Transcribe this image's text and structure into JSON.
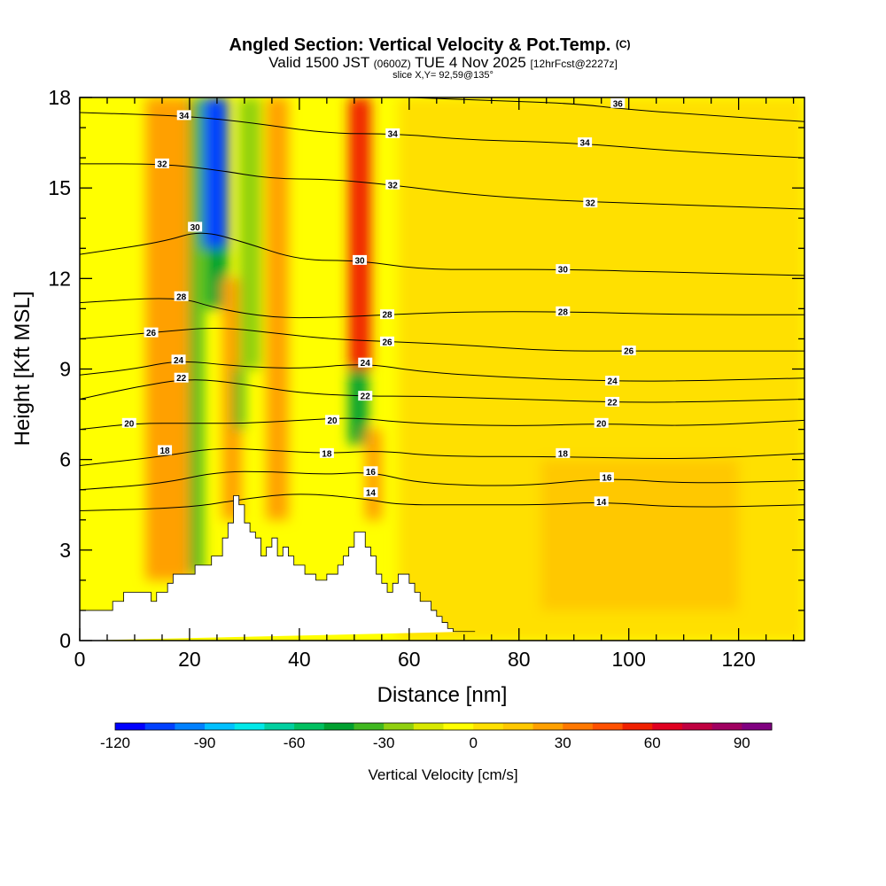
{
  "chart_data": {
    "type": "heatmap",
    "title_main": "Angled Section: Vertical Velocity & Pot.Temp.",
    "title_main_suffix": "(C)",
    "subtitle_valid_prefix": "Valid 1500 JST",
    "subtitle_utc": "(0600Z)",
    "subtitle_date": "TUE 4 Nov 2025",
    "subtitle_fcst": "[12hrFcst@2227z]",
    "slice_label": "slice X,Y= 92,59@135°",
    "xlabel": "Distance [nm]",
    "ylabel": "Height [Kft MSL]",
    "xlim": [
      0,
      132
    ],
    "ylim": [
      0,
      18
    ],
    "x_ticks": [
      "0",
      "20",
      "40",
      "60",
      "80",
      "100",
      "120"
    ],
    "y_ticks": [
      "0",
      "3",
      "6",
      "9",
      "12",
      "15",
      "18"
    ],
    "colorbar": {
      "label": "Vertical Velocity [cm/s]",
      "range": [
        -120,
        100
      ],
      "ticks": [
        "-120",
        "-90",
        "-60",
        "-30",
        "0",
        "30",
        "60",
        "90"
      ],
      "colors": [
        "#0000ff",
        "#0040ff",
        "#0080ff",
        "#00c0ff",
        "#00e8e8",
        "#00d0a0",
        "#00c060",
        "#00a030",
        "#40b820",
        "#90d010",
        "#d8e800",
        "#ffff00",
        "#ffe000",
        "#ffc800",
        "#ffa000",
        "#ff7800",
        "#ff5000",
        "#f02000",
        "#e00020",
        "#c00040",
        "#a00060",
        "#800080"
      ]
    },
    "terrain_profile": {
      "x": [
        0,
        5,
        5,
        6,
        6,
        7,
        7,
        8,
        8,
        10,
        10,
        13,
        13,
        14,
        14,
        15,
        15,
        16,
        16,
        17,
        17,
        18,
        18,
        19,
        19,
        20,
        20,
        21,
        21,
        22,
        22,
        23,
        23,
        24,
        24,
        25,
        25,
        26,
        26,
        27,
        27,
        28,
        28,
        29,
        29,
        30,
        30,
        31,
        31,
        32,
        32,
        33,
        33,
        34,
        34,
        35,
        35,
        36,
        36,
        37,
        37,
        38,
        38,
        39,
        39,
        40,
        40,
        41,
        41,
        42,
        42,
        43,
        43,
        44,
        44,
        45,
        45,
        46,
        46,
        47,
        47,
        48,
        48,
        49,
        49,
        50,
        50,
        51,
        51,
        52,
        52,
        53,
        53,
        54,
        54,
        55,
        55,
        56,
        56,
        57,
        57,
        58,
        58,
        59,
        59,
        60,
        60,
        61,
        61,
        62,
        62,
        63,
        63,
        64,
        64,
        65,
        65,
        66,
        66,
        67,
        67,
        68,
        68,
        69,
        69,
        70,
        70,
        71,
        71,
        72,
        72,
        132
      ],
      "y": [
        1.0,
        1.0,
        1.0,
        1.0,
        1.3,
        1.3,
        1.3,
        1.3,
        1.6,
        1.6,
        1.6,
        1.6,
        1.3,
        1.3,
        1.6,
        1.6,
        1.6,
        1.6,
        1.9,
        1.9,
        2.2,
        2.2,
        2.2,
        2.2,
        2.2,
        2.2,
        2.2,
        2.2,
        2.5,
        2.5,
        2.5,
        2.5,
        2.5,
        2.5,
        2.8,
        2.8,
        2.8,
        2.8,
        3.4,
        3.4,
        3.9,
        3.9,
        4.8,
        4.8,
        4.5,
        4.5,
        3.9,
        3.9,
        3.6,
        3.6,
        3.4,
        3.4,
        2.8,
        2.8,
        3.1,
        3.1,
        3.4,
        3.4,
        2.8,
        2.8,
        3.1,
        3.1,
        2.8,
        2.8,
        2.5,
        2.5,
        2.5,
        2.5,
        2.2,
        2.2,
        2.2,
        2.2,
        2.0,
        2.0,
        2.0,
        2.0,
        2.2,
        2.2,
        2.2,
        2.2,
        2.5,
        2.5,
        2.8,
        2.8,
        3.1,
        3.1,
        3.6,
        3.6,
        3.6,
        3.6,
        3.1,
        3.1,
        2.8,
        2.8,
        2.2,
        2.2,
        1.9,
        1.9,
        1.6,
        1.6,
        1.9,
        1.9,
        2.2,
        2.2,
        2.2,
        2.2,
        1.9,
        1.9,
        1.6,
        1.6,
        1.3,
        1.3,
        1.3,
        1.3,
        1.0,
        1.0,
        0.8,
        0.8,
        0.6,
        0.6,
        0.4,
        0.4,
        0.3,
        0.3,
        0.3,
        0.3,
        0.3,
        0.3,
        0.3,
        0.3,
        0.3
      ]
    },
    "cells": [
      {
        "x0": 12,
        "x1": 20,
        "y0": 2,
        "y1": 18,
        "w": 20
      },
      {
        "x0": 20,
        "x1": 22.5,
        "y0": 2.2,
        "y1": 18,
        "w": -40
      },
      {
        "x0": 22.5,
        "x1": 27,
        "y0": 13,
        "y1": 18,
        "w": -110
      },
      {
        "x0": 23,
        "x1": 27,
        "y0": 11,
        "y1": 13,
        "w": -50
      },
      {
        "x0": 26,
        "x1": 29.5,
        "y0": 4,
        "y1": 12,
        "w": 30
      },
      {
        "x0": 28,
        "x1": 30,
        "y0": 7,
        "y1": 9,
        "w": -40
      },
      {
        "x0": 29,
        "x1": 33,
        "y0": 9,
        "y1": 18,
        "w": -25
      },
      {
        "x0": 34,
        "x1": 38,
        "y0": 4,
        "y1": 18,
        "w": 30
      },
      {
        "x0": 49,
        "x1": 53,
        "y0": 9,
        "y1": 18,
        "w": 50
      },
      {
        "x0": 49,
        "x1": 52.5,
        "y0": 6.5,
        "y1": 9,
        "w": -45
      },
      {
        "x0": 52,
        "x1": 55,
        "y0": 4,
        "y1": 7,
        "w": 30
      },
      {
        "x0": 67,
        "x1": 74,
        "y0": 13,
        "y1": 18,
        "w": -25
      },
      {
        "x0": 58,
        "x1": 132,
        "y0": 0,
        "y1": 18,
        "w": 4
      },
      {
        "x0": 84,
        "x1": 120,
        "y0": 1,
        "y1": 6,
        "w": 10
      }
    ],
    "isentropes": [
      {
        "value": 14,
        "label": "14",
        "pts": [
          [
            0,
            4.3
          ],
          [
            20,
            4.4
          ],
          [
            30,
            4.7
          ],
          [
            40,
            4.9
          ],
          [
            52,
            4.7
          ],
          [
            58,
            4.5
          ],
          [
            70,
            4.5
          ],
          [
            85,
            4.5
          ],
          [
            95,
            4.6
          ],
          [
            110,
            4.4
          ],
          [
            132,
            4.5
          ]
        ]
      },
      {
        "value": 16,
        "label": "16",
        "pts": [
          [
            0,
            5.0
          ],
          [
            15,
            5.2
          ],
          [
            25,
            5.6
          ],
          [
            35,
            5.6
          ],
          [
            45,
            5.5
          ],
          [
            53,
            5.6
          ],
          [
            62,
            5.2
          ],
          [
            80,
            5.1
          ],
          [
            96,
            5.4
          ],
          [
            110,
            5.2
          ],
          [
            132,
            5.3
          ]
        ]
      },
      {
        "value": 18,
        "label": "18",
        "pts": [
          [
            0,
            5.8
          ],
          [
            15,
            6.1
          ],
          [
            25,
            6.4
          ],
          [
            35,
            6.3
          ],
          [
            45,
            6.2
          ],
          [
            55,
            6.3
          ],
          [
            65,
            6.1
          ],
          [
            88,
            6.1
          ],
          [
            110,
            6.0
          ],
          [
            132,
            6.2
          ]
        ]
      },
      {
        "value": 20,
        "label": "20",
        "pts": [
          [
            0,
            7.0
          ],
          [
            10,
            7.2
          ],
          [
            20,
            7.2
          ],
          [
            30,
            7.2
          ],
          [
            40,
            7.3
          ],
          [
            50,
            7.4
          ],
          [
            60,
            7.2
          ],
          [
            80,
            7.1
          ],
          [
            95,
            7.2
          ],
          [
            110,
            7.1
          ],
          [
            132,
            7.3
          ]
        ]
      },
      {
        "value": 22,
        "label": "22",
        "pts": [
          [
            0,
            8.0
          ],
          [
            10,
            8.4
          ],
          [
            20,
            8.7
          ],
          [
            30,
            8.5
          ],
          [
            40,
            8.2
          ],
          [
            52,
            8.1
          ],
          [
            62,
            8.1
          ],
          [
            80,
            8.0
          ],
          [
            97,
            7.9
          ],
          [
            110,
            7.9
          ],
          [
            132,
            8.0
          ]
        ]
      },
      {
        "value": 24,
        "label": "24",
        "pts": [
          [
            0,
            8.8
          ],
          [
            10,
            9.0
          ],
          [
            18,
            9.3
          ],
          [
            28,
            9.1
          ],
          [
            40,
            9.0
          ],
          [
            52,
            9.2
          ],
          [
            62,
            8.9
          ],
          [
            80,
            8.7
          ],
          [
            97,
            8.6
          ],
          [
            110,
            8.6
          ],
          [
            132,
            8.7
          ]
        ]
      },
      {
        "value": 26,
        "label": "26",
        "pts": [
          [
            0,
            10.0
          ],
          [
            13,
            10.2
          ],
          [
            25,
            10.4
          ],
          [
            35,
            10.2
          ],
          [
            45,
            10.0
          ],
          [
            57,
            9.9
          ],
          [
            70,
            9.8
          ],
          [
            85,
            9.6
          ],
          [
            100,
            9.6
          ],
          [
            132,
            9.6
          ]
        ]
      },
      {
        "value": 28,
        "label": "28",
        "pts": [
          [
            0,
            11.2
          ],
          [
            18,
            11.4
          ],
          [
            25,
            11.0
          ],
          [
            35,
            10.7
          ],
          [
            45,
            10.7
          ],
          [
            56,
            10.8
          ],
          [
            70,
            10.9
          ],
          [
            88,
            10.9
          ],
          [
            110,
            10.8
          ],
          [
            132,
            10.8
          ]
        ]
      },
      {
        "value": 30,
        "label": "30",
        "pts": [
          [
            0,
            12.8
          ],
          [
            15,
            13.2
          ],
          [
            22,
            13.6
          ],
          [
            30,
            13.2
          ],
          [
            40,
            12.6
          ],
          [
            51,
            12.6
          ],
          [
            62,
            12.3
          ],
          [
            75,
            12.3
          ],
          [
            88,
            12.3
          ],
          [
            110,
            12.2
          ],
          [
            132,
            12.1
          ]
        ]
      },
      {
        "value": 32,
        "label": "32",
        "pts": [
          [
            0,
            15.8
          ],
          [
            15,
            15.8
          ],
          [
            25,
            15.6
          ],
          [
            35,
            15.3
          ],
          [
            45,
            15.3
          ],
          [
            57,
            15.1
          ],
          [
            70,
            14.8
          ],
          [
            85,
            14.6
          ],
          [
            100,
            14.5
          ],
          [
            132,
            14.3
          ]
        ]
      },
      {
        "value": 34,
        "label": "34",
        "pts": [
          [
            0,
            17.5
          ],
          [
            18,
            17.4
          ],
          [
            30,
            17.2
          ],
          [
            45,
            16.8
          ],
          [
            58,
            16.8
          ],
          [
            70,
            16.6
          ],
          [
            90,
            16.5
          ],
          [
            110,
            16.2
          ],
          [
            132,
            16.0
          ]
        ]
      },
      {
        "value": 36,
        "label": "36",
        "pts": [
          [
            60,
            18.0
          ],
          [
            75,
            17.9
          ],
          [
            90,
            17.8
          ],
          [
            100,
            17.6
          ],
          [
            115,
            17.4
          ],
          [
            132,
            17.2
          ]
        ]
      }
    ],
    "contour_labels": [
      {
        "x": 19,
        "y": 17.4,
        "text": "34"
      },
      {
        "x": 57,
        "y": 16.8,
        "text": "34"
      },
      {
        "x": 92,
        "y": 16.5,
        "text": "34"
      },
      {
        "x": 98,
        "y": 17.8,
        "text": "36"
      },
      {
        "x": 15,
        "y": 15.8,
        "text": "32"
      },
      {
        "x": 57,
        "y": 15.1,
        "text": "32"
      },
      {
        "x": 93,
        "y": 14.5,
        "text": "32"
      },
      {
        "x": 21,
        "y": 13.7,
        "text": "30"
      },
      {
        "x": 51,
        "y": 12.6,
        "text": "30"
      },
      {
        "x": 88,
        "y": 12.3,
        "text": "30"
      },
      {
        "x": 18.5,
        "y": 11.4,
        "text": "28"
      },
      {
        "x": 56,
        "y": 10.8,
        "text": "28"
      },
      {
        "x": 88,
        "y": 10.9,
        "text": "28"
      },
      {
        "x": 13,
        "y": 10.2,
        "text": "26"
      },
      {
        "x": 56,
        "y": 9.9,
        "text": "26"
      },
      {
        "x": 100,
        "y": 9.6,
        "text": "26"
      },
      {
        "x": 18,
        "y": 9.3,
        "text": "24"
      },
      {
        "x": 52,
        "y": 9.2,
        "text": "24"
      },
      {
        "x": 97,
        "y": 8.6,
        "text": "24"
      },
      {
        "x": 18.5,
        "y": 8.7,
        "text": "22"
      },
      {
        "x": 52,
        "y": 8.1,
        "text": "22"
      },
      {
        "x": 97,
        "y": 7.9,
        "text": "22"
      },
      {
        "x": 9,
        "y": 7.2,
        "text": "20"
      },
      {
        "x": 46,
        "y": 7.3,
        "text": "20"
      },
      {
        "x": 95,
        "y": 7.2,
        "text": "20"
      },
      {
        "x": 15.5,
        "y": 6.3,
        "text": "18"
      },
      {
        "x": 45,
        "y": 6.2,
        "text": "18"
      },
      {
        "x": 88,
        "y": 6.2,
        "text": "18"
      },
      {
        "x": 53,
        "y": 5.6,
        "text": "16"
      },
      {
        "x": 96,
        "y": 5.4,
        "text": "16"
      },
      {
        "x": 53,
        "y": 4.9,
        "text": "14"
      },
      {
        "x": 95,
        "y": 4.6,
        "text": "14"
      }
    ]
  }
}
